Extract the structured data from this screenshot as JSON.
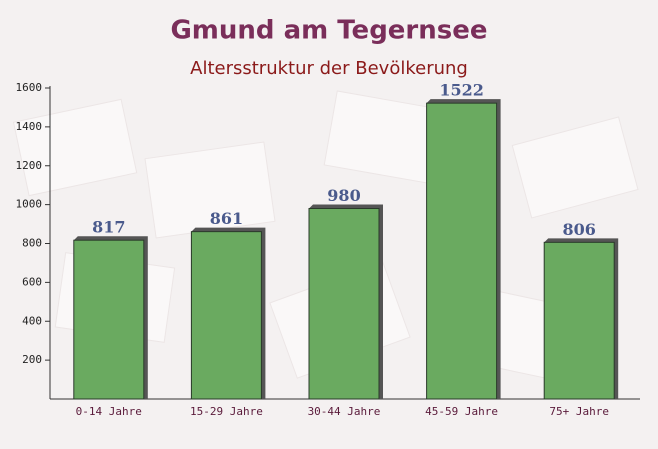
{
  "chart_data": {
    "type": "bar",
    "title": "Gmund am Tegernsee",
    "subtitle": "Altersstruktur der Bevölkerung",
    "categories": [
      "0-14 Jahre",
      "15-29 Jahre",
      "30-44 Jahre",
      "45-59 Jahre",
      "75+ Jahre"
    ],
    "values": [
      817,
      861,
      980,
      1522,
      806
    ],
    "color": "#6aaa60",
    "ylim": [
      0,
      1600
    ],
    "yticks": [
      200,
      400,
      600,
      800,
      1000,
      1200,
      1400,
      1600
    ]
  }
}
